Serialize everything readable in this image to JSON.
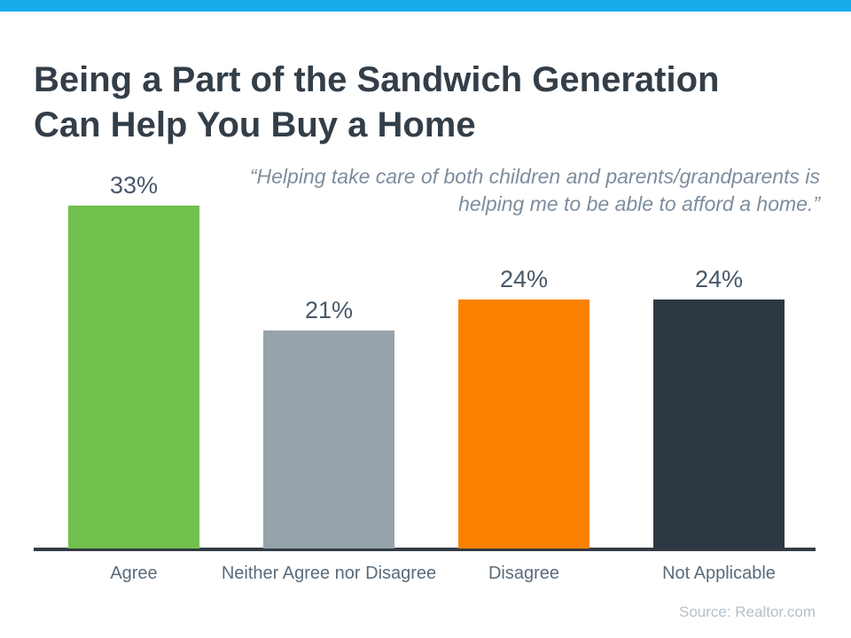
{
  "accent": {
    "top_bar_color": "#17abec"
  },
  "header": {
    "title_line1": "Being a Part of the Sandwich Generation",
    "title_line2": "Can Help You Buy a Home"
  },
  "quote": {
    "text": "“Helping take care of both children and parents/grandparents is helping me to be able to afford a home.”"
  },
  "chart_data": {
    "type": "bar",
    "categories": [
      "Agree",
      "Neither Agree nor Disagree",
      "Disagree",
      "Not Applicable"
    ],
    "values": [
      33,
      21,
      24,
      24
    ],
    "value_labels": [
      "33%",
      "21%",
      "24%",
      "24%"
    ],
    "bar_colors": [
      "#70c04e",
      "#96a3aa",
      "#fb8200",
      "#2e3842"
    ],
    "title": "",
    "xlabel": "",
    "ylabel": "",
    "ylim": [
      0,
      33
    ],
    "grid": false,
    "legend": "none",
    "axis_line_color": "#333b43",
    "value_label_color": "#47586a",
    "category_label_color": "#5a6b7a"
  },
  "footer": {
    "source_label": "Source: Realtor.com"
  }
}
